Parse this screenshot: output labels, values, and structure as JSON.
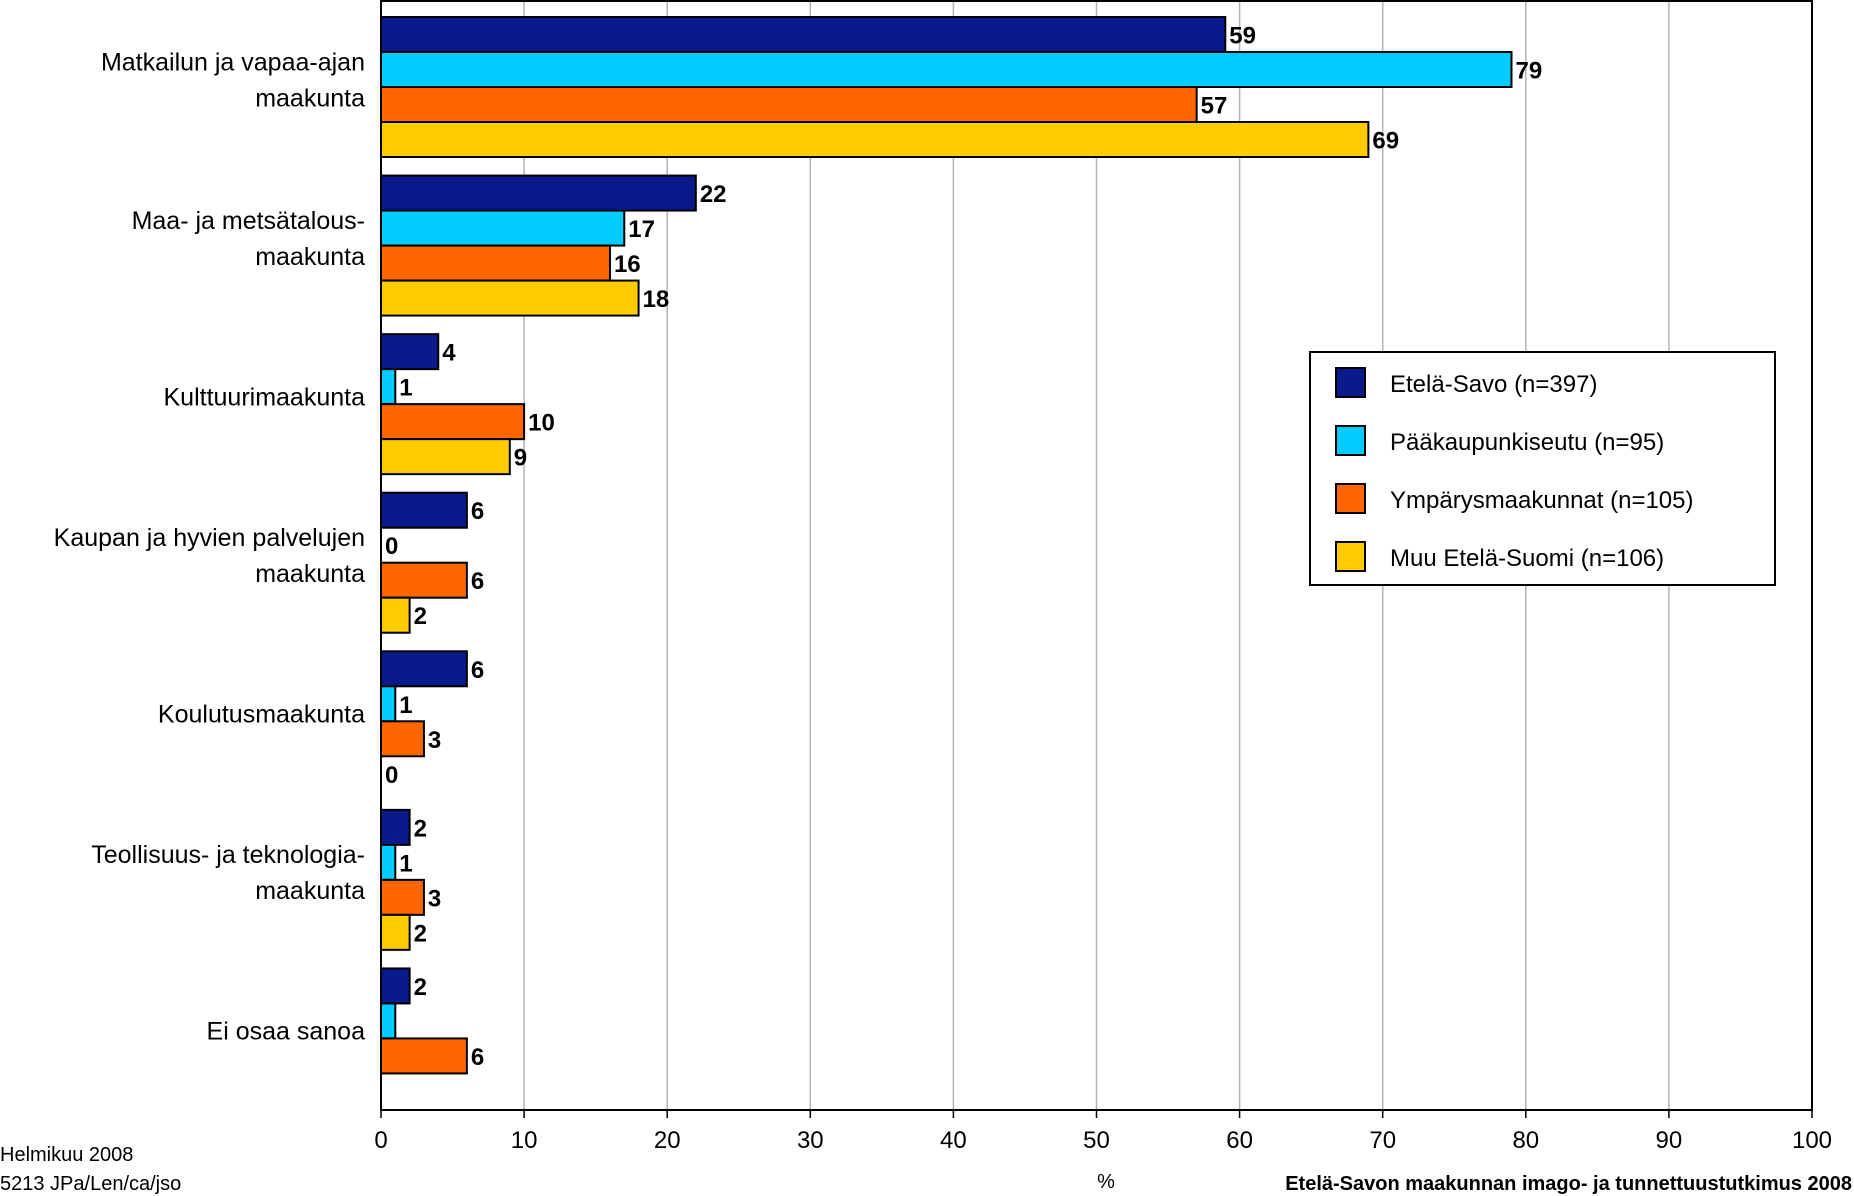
{
  "chart_data": {
    "type": "bar",
    "orientation": "horizontal",
    "categories": [
      [
        "Matkailun ja vapaa-ajan",
        "maakunta"
      ],
      [
        "Maa- ja metsätalous-",
        "maakunta"
      ],
      [
        "Kulttuurimaakunta"
      ],
      [
        "Kaupan ja hyvien palvelujen",
        "maakunta"
      ],
      [
        "Koulutusmaakunta"
      ],
      [
        "Teollisuus- ja teknologia-",
        "maakunta"
      ],
      [
        "Ei osaa sanoa"
      ]
    ],
    "series": [
      {
        "name": "Etelä-Savo (n=397)",
        "color": "#0a1a8c",
        "values": [
          59,
          22,
          4,
          6,
          6,
          2,
          2
        ]
      },
      {
        "name": "Pääkaupunkiseutu (n=95)",
        "color": "#00ccff",
        "values": [
          79,
          17,
          1,
          0,
          1,
          1,
          1
        ]
      },
      {
        "name": "Ympärysmaakunnat (n=105)",
        "color": "#ff6600",
        "values": [
          57,
          16,
          10,
          6,
          3,
          3,
          6
        ]
      },
      {
        "name": "Muu Etelä-Suomi (n=106)",
        "color": "#ffcc00",
        "values": [
          69,
          18,
          9,
          2,
          0,
          2,
          0
        ]
      }
    ],
    "hidden_labels": [
      {
        "series": 1,
        "category": 6
      },
      {
        "series": 3,
        "category": 6
      }
    ],
    "xlim": [
      0,
      100
    ],
    "xticks": [
      0,
      10,
      20,
      30,
      40,
      50,
      60,
      70,
      80,
      90,
      100
    ],
    "xlabel": "%",
    "grid": true,
    "legend_position": "right"
  },
  "footer": {
    "date": "Helmikuu 2008",
    "code": "5213 JPa/Len/ca/jso",
    "source": "Etelä-Savon maakunnan imago- ja tunnettuustutkimus 2008"
  }
}
